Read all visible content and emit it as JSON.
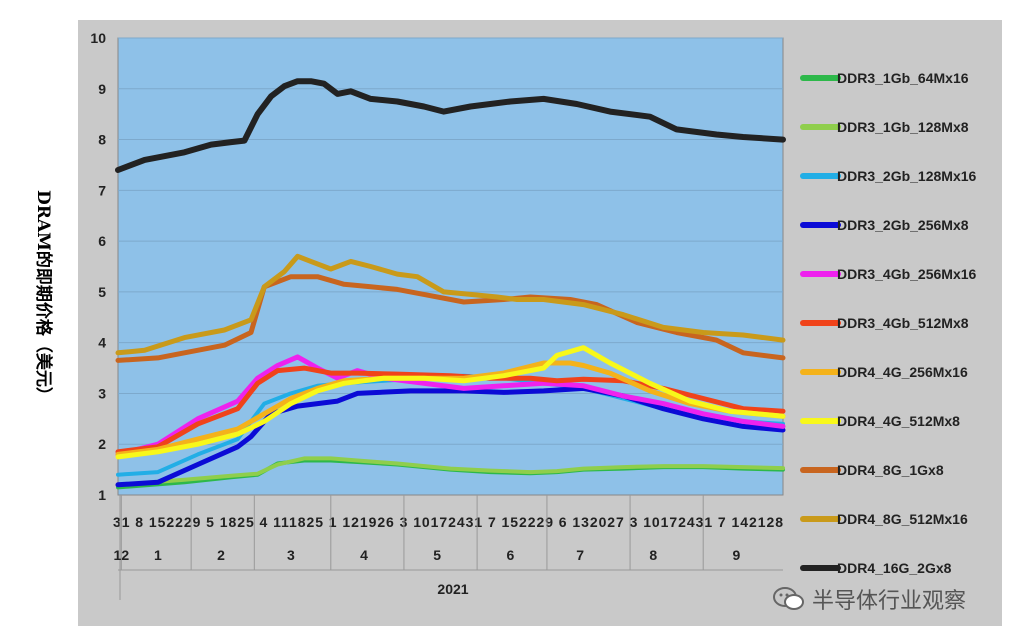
{
  "chart_data": {
    "type": "line",
    "title": "",
    "ylabel": "DRAM的即期价格（美元）",
    "ylim": [
      1,
      10
    ],
    "yticks": [
      1,
      2,
      3,
      4,
      5,
      6,
      7,
      8,
      9,
      10
    ],
    "xlim": [
      0,
      100
    ],
    "day_tick_row": "31 8 152229 5 1825 4 111825 1 121926 3 10172431 7 152229 6 132027 3 10172431 7 142128",
    "month_labels": [
      {
        "label": "12",
        "x": 0.5
      },
      {
        "label": "1",
        "x": 6
      },
      {
        "label": "2",
        "x": 15.5
      },
      {
        "label": "3",
        "x": 26
      },
      {
        "label": "4",
        "x": 37
      },
      {
        "label": "5",
        "x": 48
      },
      {
        "label": "6",
        "x": 59
      },
      {
        "label": "7",
        "x": 69.5
      },
      {
        "label": "8",
        "x": 80.5
      },
      {
        "label": "9",
        "x": 93
      }
    ],
    "month_dividers": [
      0.5,
      11,
      20.5,
      32,
      43,
      54,
      64.5,
      77,
      88
    ],
    "year_label": "2021",
    "series": [
      {
        "name": "DDR3_1Gb_64Mx16",
        "color": "#2db84a",
        "width": 4,
        "x": [
          0,
          10,
          17,
          21,
          24,
          28,
          32,
          36,
          42,
          50,
          56,
          62,
          66,
          70,
          76,
          82,
          88,
          94,
          100
        ],
        "y": [
          1.15,
          1.25,
          1.35,
          1.4,
          1.62,
          1.68,
          1.68,
          1.65,
          1.6,
          1.5,
          1.45,
          1.43,
          1.45,
          1.5,
          1.52,
          1.55,
          1.55,
          1.52,
          1.5
        ]
      },
      {
        "name": "DDR3_1Gb_128Mx8",
        "color": "#8fce4c",
        "width": 4,
        "x": [
          0,
          10,
          17,
          21,
          24,
          28,
          32,
          36,
          42,
          50,
          56,
          62,
          66,
          70,
          76,
          82,
          88,
          94,
          100
        ],
        "y": [
          1.2,
          1.3,
          1.38,
          1.42,
          1.6,
          1.72,
          1.72,
          1.68,
          1.62,
          1.52,
          1.48,
          1.45,
          1.47,
          1.52,
          1.55,
          1.57,
          1.57,
          1.55,
          1.53
        ]
      },
      {
        "name": "DDR3_2Gb_128Mx16",
        "color": "#22aee6",
        "width": 4,
        "x": [
          0,
          6,
          12,
          18,
          22,
          26,
          30,
          34,
          40,
          46,
          52,
          58,
          64,
          70,
          76,
          82,
          88,
          94,
          100
        ],
        "y": [
          1.4,
          1.45,
          1.8,
          2.1,
          2.8,
          3.0,
          3.15,
          3.2,
          3.25,
          3.3,
          3.35,
          3.3,
          3.2,
          3.1,
          2.9,
          2.7,
          2.55,
          2.45,
          2.4
        ]
      },
      {
        "name": "DDR3_2Gb_256Mx8",
        "color": "#0b0bd6",
        "width": 5,
        "x": [
          0,
          6,
          12,
          18,
          20,
          23,
          27,
          33,
          36,
          44,
          52,
          58,
          64,
          70,
          76,
          82,
          88,
          94,
          100
        ],
        "y": [
          1.2,
          1.25,
          1.6,
          1.95,
          2.15,
          2.6,
          2.75,
          2.85,
          3.0,
          3.05,
          3.05,
          3.02,
          3.05,
          3.1,
          2.95,
          2.7,
          2.5,
          2.35,
          2.28
        ]
      },
      {
        "name": "DDR3_4Gb_256Mx16",
        "color": "#ee22ee",
        "width": 5,
        "x": [
          0,
          6,
          12,
          18,
          21,
          24,
          27,
          30,
          33,
          36,
          40,
          46,
          52,
          58,
          64,
          70,
          76,
          82,
          88,
          94,
          100
        ],
        "y": [
          1.8,
          2.0,
          2.5,
          2.85,
          3.3,
          3.55,
          3.72,
          3.5,
          3.3,
          3.45,
          3.3,
          3.2,
          3.1,
          3.15,
          3.2,
          3.15,
          2.95,
          2.8,
          2.6,
          2.45,
          2.35
        ]
      },
      {
        "name": "DDR3_4Gb_512Mx8",
        "color": "#f0431a",
        "width": 5,
        "x": [
          0,
          6,
          12,
          18,
          21,
          24,
          28,
          32,
          36,
          42,
          50,
          56,
          62,
          66,
          70,
          76,
          82,
          88,
          94,
          100
        ],
        "y": [
          1.85,
          1.95,
          2.4,
          2.7,
          3.2,
          3.45,
          3.5,
          3.4,
          3.4,
          3.38,
          3.35,
          3.3,
          3.3,
          3.25,
          3.28,
          3.25,
          3.1,
          2.9,
          2.7,
          2.65
        ]
      },
      {
        "name": "DDR4_4G_256Mx16",
        "color": "#f4b21a",
        "width": 5,
        "x": [
          0,
          6,
          12,
          18,
          22,
          26,
          30,
          34,
          40,
          46,
          52,
          58,
          64,
          68,
          70,
          74,
          80,
          86,
          92,
          100
        ],
        "y": [
          1.8,
          1.9,
          2.1,
          2.3,
          2.6,
          2.9,
          3.1,
          3.25,
          3.3,
          3.3,
          3.3,
          3.4,
          3.6,
          3.6,
          3.55,
          3.4,
          3.05,
          2.8,
          2.65,
          2.55
        ]
      },
      {
        "name": "DDR4_4G_512Mx8",
        "color": "#f8f81a",
        "width": 5,
        "x": [
          0,
          6,
          12,
          18,
          22,
          26,
          30,
          34,
          40,
          46,
          52,
          58,
          64,
          66,
          70,
          74,
          80,
          86,
          92,
          100
        ],
        "y": [
          1.75,
          1.85,
          2.0,
          2.2,
          2.45,
          2.8,
          3.05,
          3.2,
          3.3,
          3.3,
          3.25,
          3.35,
          3.5,
          3.75,
          3.9,
          3.6,
          3.2,
          2.85,
          2.65,
          2.55
        ]
      },
      {
        "name": "DDR4_8G_1Gx8",
        "color": "#c8651f",
        "width": 5,
        "x": [
          0,
          6,
          10,
          16,
          20,
          22,
          26,
          30,
          34,
          38,
          42,
          46,
          52,
          58,
          62,
          68,
          72,
          78,
          84,
          90,
          94,
          100
        ],
        "y": [
          3.65,
          3.7,
          3.8,
          3.95,
          4.2,
          5.1,
          5.3,
          5.3,
          5.15,
          5.1,
          5.05,
          4.95,
          4.8,
          4.85,
          4.9,
          4.85,
          4.75,
          4.4,
          4.2,
          4.05,
          3.8,
          3.7
        ]
      },
      {
        "name": "DDR4_8G_512Mx16",
        "color": "#c99a1a",
        "width": 5,
        "x": [
          0,
          4,
          10,
          16,
          20,
          22,
          25,
          27,
          29,
          32,
          35,
          38,
          42,
          45,
          49,
          53,
          57,
          60,
          64,
          70,
          76,
          82,
          88,
          94,
          100
        ],
        "y": [
          3.8,
          3.85,
          4.1,
          4.25,
          4.45,
          5.1,
          5.4,
          5.7,
          5.6,
          5.45,
          5.6,
          5.5,
          5.35,
          5.3,
          5.0,
          4.95,
          4.9,
          4.85,
          4.85,
          4.75,
          4.55,
          4.3,
          4.2,
          4.15,
          4.05
        ]
      },
      {
        "name": "DDR4_16G_2Gx8",
        "color": "#222222",
        "width": 6,
        "x": [
          0,
          4,
          10,
          14,
          17,
          19,
          21,
          23,
          25,
          27,
          29,
          31,
          33,
          35,
          38,
          42,
          46,
          49,
          53,
          59,
          64,
          69,
          74,
          80,
          84,
          90,
          94,
          100
        ],
        "y": [
          7.4,
          7.6,
          7.75,
          7.9,
          7.95,
          7.98,
          8.5,
          8.85,
          9.05,
          9.15,
          9.15,
          9.1,
          8.9,
          8.95,
          8.8,
          8.75,
          8.65,
          8.55,
          8.65,
          8.75,
          8.8,
          8.7,
          8.55,
          8.45,
          8.2,
          8.1,
          8.05,
          8.0
        ]
      }
    ]
  },
  "watermark": {
    "text": "半导体行业观察"
  }
}
